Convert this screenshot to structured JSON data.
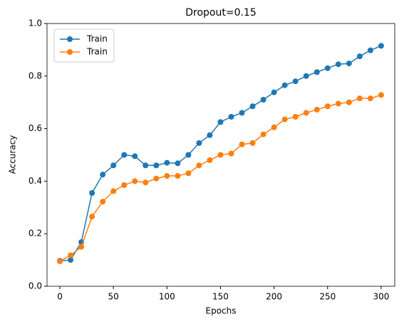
{
  "chart_data": {
    "type": "line",
    "title": "Dropout=0.15",
    "xlabel": "Epochs",
    "ylabel": "Accuracy",
    "x": [
      0,
      10,
      20,
      30,
      40,
      50,
      60,
      70,
      80,
      90,
      100,
      110,
      120,
      130,
      140,
      150,
      160,
      170,
      180,
      190,
      200,
      210,
      220,
      230,
      240,
      250,
      260,
      270,
      280,
      290,
      300
    ],
    "series": [
      {
        "name": "Train",
        "color": "#1f77b4",
        "values": [
          0.097,
          0.1,
          0.168,
          0.355,
          0.425,
          0.46,
          0.5,
          0.495,
          0.46,
          0.46,
          0.47,
          0.468,
          0.5,
          0.545,
          0.575,
          0.625,
          0.645,
          0.66,
          0.685,
          0.71,
          0.738,
          0.765,
          0.78,
          0.8,
          0.815,
          0.83,
          0.845,
          0.848,
          0.875,
          0.898,
          0.915
        ]
      },
      {
        "name": "Train",
        "color": "#ff7f0e",
        "values": [
          0.095,
          0.118,
          0.15,
          0.265,
          0.322,
          0.362,
          0.385,
          0.4,
          0.395,
          0.41,
          0.42,
          0.42,
          0.43,
          0.46,
          0.48,
          0.5,
          0.505,
          0.54,
          0.545,
          0.578,
          0.605,
          0.635,
          0.645,
          0.66,
          0.672,
          0.685,
          0.695,
          0.7,
          0.715,
          0.715,
          0.728
        ]
      }
    ],
    "xlim": [
      -12,
      312.7
    ],
    "xticks": [
      0,
      50,
      100,
      150,
      200,
      250,
      300
    ],
    "ylim": [
      0,
      1
    ],
    "yticks": [
      {
        "value": 0,
        "label": "0.0"
      },
      0.2,
      0.4,
      0.6,
      0.8,
      {
        "value": 1,
        "label": "1.0"
      }
    ],
    "legend": "upper left"
  }
}
